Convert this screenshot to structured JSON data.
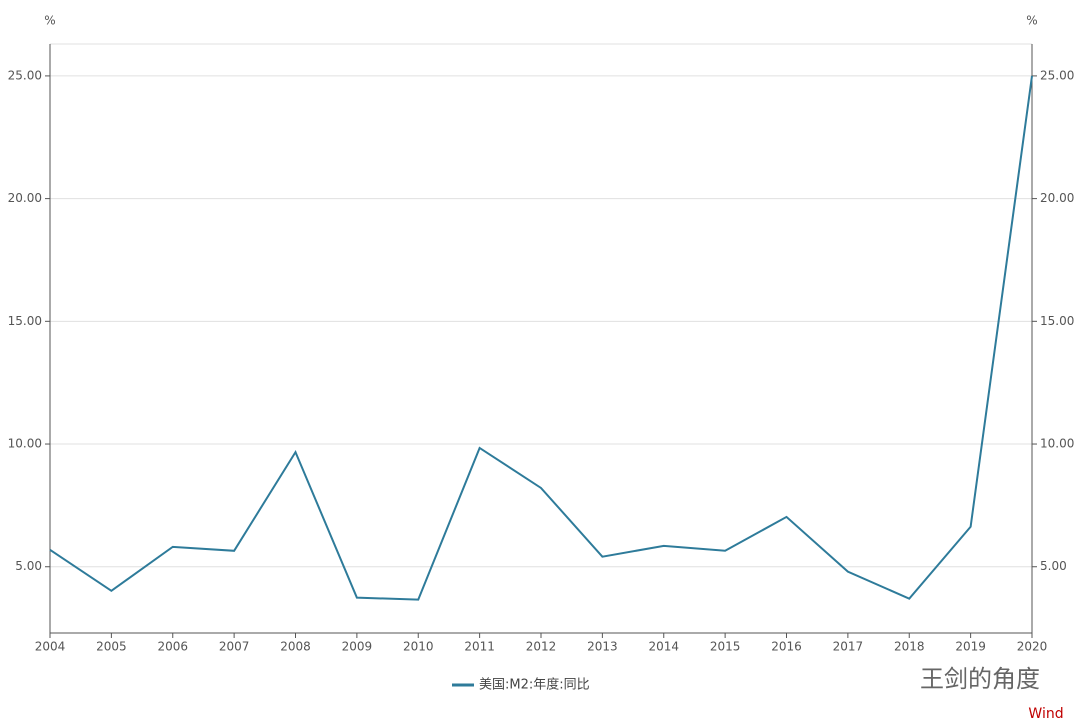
{
  "chart_data": {
    "type": "line",
    "y_unit": "%",
    "y2_unit": "%",
    "x": [
      2004,
      2005,
      2006,
      2007,
      2008,
      2009,
      2010,
      2011,
      2012,
      2013,
      2014,
      2015,
      2016,
      2017,
      2018,
      2019,
      2020
    ],
    "xlim": [
      2004,
      2020
    ],
    "xticks": [
      2004,
      2005,
      2006,
      2007,
      2008,
      2009,
      2010,
      2011,
      2012,
      2013,
      2014,
      2015,
      2016,
      2017,
      2018,
      2019,
      2020
    ],
    "series": [
      {
        "name": "美国:M2:年度:同比",
        "color": "#2e7b9a",
        "values": [
          5.69,
          4.02,
          5.81,
          5.65,
          9.67,
          3.74,
          3.66,
          9.84,
          8.21,
          5.41,
          5.85,
          5.65,
          7.03,
          4.8,
          3.7,
          6.63,
          25.0
        ]
      }
    ],
    "ylim": [
      2.3,
      26.3
    ],
    "yticks": [
      {
        "value": 5,
        "label": "5.00"
      },
      {
        "value": 10,
        "label": "10.00"
      },
      {
        "value": 15,
        "label": "15.00"
      },
      {
        "value": 20,
        "label": "20.00"
      },
      {
        "value": 25,
        "label": "25.00"
      }
    ],
    "y2lim": [
      2.3,
      26.3
    ],
    "y2ticks": [
      {
        "value": 5,
        "label": "5.00"
      },
      {
        "value": 10,
        "label": "10.00"
      },
      {
        "value": 15,
        "label": "15.00"
      },
      {
        "value": 20,
        "label": "20.00"
      },
      {
        "value": 25,
        "label": "25.00"
      }
    ],
    "grid": true,
    "watermark": "王剑的角度",
    "source": "Wind"
  }
}
